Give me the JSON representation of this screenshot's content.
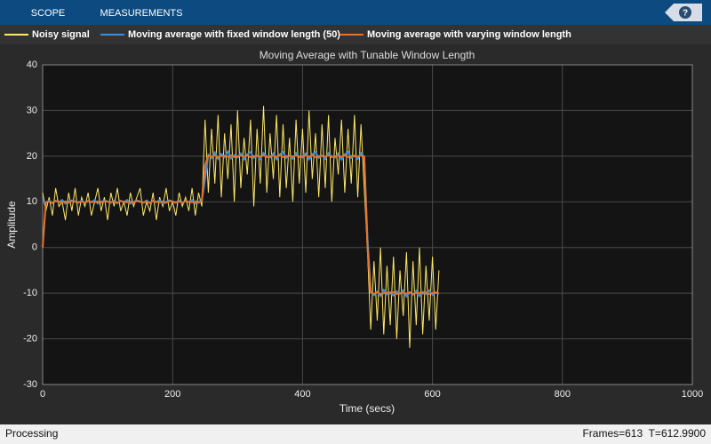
{
  "toolbar": {
    "tabs": [
      "SCOPE",
      "MEASUREMENTS"
    ],
    "help": "?"
  },
  "status": {
    "left": "Processing",
    "right": "Frames=613  T=612.9900"
  },
  "chart_data": {
    "type": "line",
    "title": "Moving Average with Tunable Window Length",
    "x_label": "Time (secs)",
    "y_label": "Amplitude",
    "xlim": [
      0,
      1000
    ],
    "xticks": [
      0,
      200,
      400,
      600,
      800,
      1000
    ],
    "ylim": [
      -30,
      40
    ],
    "yticks": [
      -30,
      -20,
      -10,
      0,
      10,
      20,
      30,
      40
    ],
    "grid": true,
    "x": [
      0,
      5,
      10,
      15,
      20,
      25,
      30,
      35,
      40,
      45,
      50,
      55,
      60,
      65,
      70,
      75,
      80,
      85,
      90,
      95,
      100,
      105,
      110,
      115,
      120,
      125,
      130,
      135,
      140,
      145,
      150,
      155,
      160,
      165,
      170,
      175,
      180,
      185,
      190,
      195,
      200,
      205,
      210,
      215,
      220,
      225,
      230,
      235,
      240,
      245,
      250,
      255,
      260,
      265,
      270,
      275,
      280,
      285,
      290,
      295,
      300,
      305,
      310,
      315,
      320,
      325,
      330,
      335,
      340,
      345,
      350,
      355,
      360,
      365,
      370,
      375,
      380,
      385,
      390,
      395,
      400,
      405,
      410,
      415,
      420,
      425,
      430,
      435,
      440,
      445,
      450,
      455,
      460,
      465,
      470,
      475,
      480,
      485,
      490,
      495,
      500,
      505,
      510,
      515,
      520,
      525,
      530,
      535,
      540,
      545,
      550,
      555,
      560,
      565,
      570,
      575,
      580,
      585,
      590,
      595,
      600,
      605,
      610
    ],
    "series": [
      {
        "name": "Noisy signal",
        "color": "#ffe866",
        "values": [
          12,
          8,
          11,
          7,
          13,
          9,
          10,
          6,
          12,
          8,
          13,
          7,
          11,
          9,
          12,
          7,
          10,
          13,
          8,
          11,
          6,
          12,
          9,
          13,
          8,
          10,
          7,
          12,
          9,
          11,
          13,
          7,
          10,
          8,
          12,
          6,
          11,
          9,
          13,
          8,
          10,
          7,
          12,
          9,
          11,
          8,
          13,
          7,
          12,
          9,
          28,
          12,
          26,
          14,
          29,
          11,
          25,
          15,
          27,
          10,
          30,
          13,
          24,
          16,
          28,
          9,
          26,
          14,
          31,
          12,
          25,
          15,
          29,
          11,
          27,
          13,
          24,
          10,
          28,
          14,
          26,
          12,
          30,
          15,
          25,
          11,
          27,
          13,
          29,
          10,
          24,
          16,
          28,
          12,
          26,
          14,
          29,
          11,
          27,
          13,
          -1,
          -18,
          -3,
          -16,
          0,
          -19,
          -4,
          -17,
          -2,
          -20,
          -5,
          -15,
          -1,
          -22,
          -3,
          -17,
          0,
          -19,
          -4,
          -16,
          -2,
          -18,
          -5
        ]
      },
      {
        "name": "Moving average with fixed window length (50)",
        "color": "#3a8fd6",
        "values": [
          10.1,
          9.8,
          10.3,
          9.7,
          10.2,
          9.9,
          10.4,
          9.6,
          10.0,
          10.3,
          10.1,
          9.8,
          10.3,
          9.7,
          10.2,
          9.9,
          10.4,
          9.6,
          10.0,
          10.3,
          10.1,
          9.8,
          10.3,
          9.7,
          10.2,
          9.9,
          10.4,
          9.6,
          10.0,
          10.3,
          10.1,
          9.8,
          10.3,
          9.7,
          10.2,
          9.9,
          10.4,
          9.6,
          10.0,
          10.3,
          10.1,
          9.8,
          10.3,
          9.7,
          10.2,
          9.9,
          10.4,
          9.6,
          10.0,
          10.3,
          15,
          20.3,
          19.6,
          20.8,
          19.4,
          20.5,
          19.8,
          21.0,
          19.5,
          20.2,
          19.7,
          20.6,
          19.3,
          20.4,
          20.9,
          19.6,
          20.1,
          19.4,
          20.7,
          19.9,
          19.7,
          20.6,
          19.3,
          20.4,
          20.9,
          19.6,
          20.1,
          19.4,
          20.7,
          19.9,
          19.7,
          20.6,
          19.3,
          20.4,
          20.9,
          19.6,
          20.1,
          19.4,
          20.7,
          19.9,
          19.7,
          20.6,
          19.3,
          20.4,
          20.9,
          19.6,
          20.1,
          19.4,
          20.7,
          19.9,
          2,
          -9.5,
          -10.4,
          -9.7,
          -10.6,
          -9.3,
          -10.2,
          -9.8,
          -10.5,
          -9.6,
          -10.1,
          -9.4,
          -10.7,
          -9.9,
          -10.3,
          -9.5,
          -10.6,
          -9.7,
          -10.2,
          -9.4,
          -10.4,
          -9.8,
          -10.1
        ]
      },
      {
        "name": "Moving average with varying window length",
        "color": "#e8732c",
        "values": [
          0,
          9.9,
          10.1,
          9.8,
          10.2,
          10.0,
          9.9,
          10.1,
          9.8,
          10.2,
          10.0,
          9.9,
          10.1,
          9.8,
          10.2,
          10.0,
          9.9,
          10.1,
          9.8,
          10.2,
          10.0,
          9.9,
          10.1,
          9.8,
          10.2,
          10.0,
          9.9,
          10.1,
          9.8,
          10.2,
          10.0,
          9.9,
          10.1,
          9.8,
          10.2,
          10.0,
          9.9,
          10.1,
          9.8,
          10.2,
          10.0,
          9.9,
          10.1,
          9.8,
          10.2,
          10.0,
          9.9,
          10.1,
          9.8,
          10.2,
          18,
          20.1,
          19.9,
          20.2,
          19.8,
          20.0,
          20.1,
          19.9,
          20.2,
          19.8,
          20.0,
          20.1,
          19.9,
          20.2,
          19.8,
          20.0,
          20.1,
          19.9,
          20.2,
          19.8,
          20.0,
          20.1,
          19.9,
          20.2,
          19.8,
          20.0,
          20.1,
          19.9,
          20.2,
          19.8,
          20.0,
          20.1,
          19.9,
          20.2,
          19.8,
          20.0,
          20.1,
          19.9,
          20.2,
          19.8,
          20.0,
          20.1,
          19.9,
          20.2,
          19.8,
          20.0,
          20.1,
          19.9,
          20.2,
          19.8,
          0,
          -9.9,
          -10.1,
          -9.8,
          -10.2,
          -10.0,
          -9.9,
          -10.1,
          -9.8,
          -10.2,
          -10.0,
          -9.9,
          -10.1,
          -9.8,
          -10.2,
          -10.0,
          -9.9,
          -10.1,
          -9.8,
          -10.2,
          -10.0,
          -9.9,
          -10.1
        ]
      }
    ]
  }
}
